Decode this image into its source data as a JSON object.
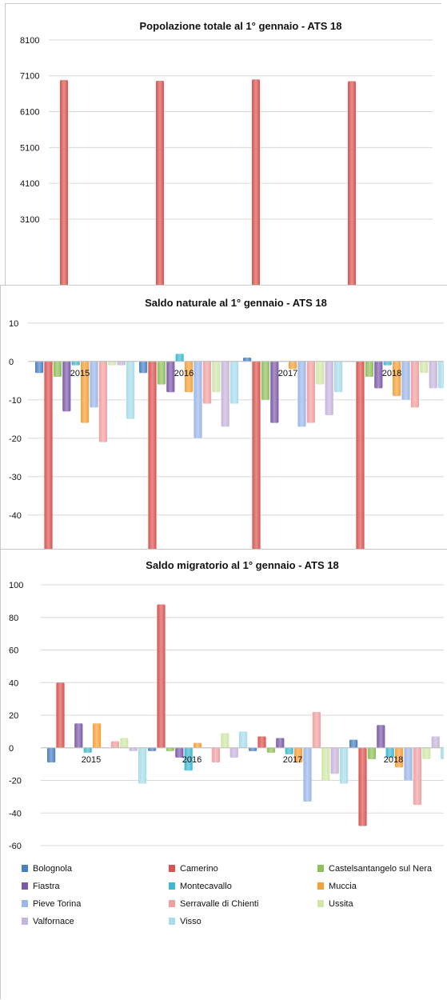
{
  "colors": {
    "Bolognola": "#4a7fc1",
    "Camerino": "#d9534f",
    "Castelsantangelo sul Nera": "#8fbf5a",
    "Fiastra": "#7b5aa6",
    "Montecavallo": "#3fb8d0",
    "Muccia": "#f5a03a",
    "Pieve Torina": "#9bb7e8",
    "Serravalle di Chienti": "#f0a0a0",
    "Ussita": "#cfe6a8",
    "Valfornace": "#c7b4dc",
    "Visso": "#a7dcea"
  },
  "chart_data": [
    {
      "type": "bar",
      "title": "Popolazione totale al 1° gennaio - ATS 18",
      "categories": [
        "",
        "",
        "",
        ""
      ],
      "yticks": [
        3100,
        4100,
        5100,
        6100,
        7100,
        8100
      ],
      "ylim": [
        2250,
        8500
      ],
      "series": [
        {
          "key": "Camerino",
          "values": [
            6980,
            6960,
            7000,
            6950
          ]
        }
      ]
    },
    {
      "type": "bar",
      "title": "Saldo naturale al 1° gennaio - ATS 18",
      "categories": [
        "2015",
        "2016",
        "2017",
        "2018"
      ],
      "yticks": [
        -40,
        -30,
        -20,
        -10,
        0,
        10
      ],
      "ylim": [
        -49,
        11
      ],
      "series": [
        {
          "key": "Bolognola",
          "values": [
            -3,
            -3,
            1,
            0
          ]
        },
        {
          "key": "Camerino",
          "values": [
            -60,
            -60,
            -60,
            -60
          ]
        },
        {
          "key": "Castelsantangelo sul Nera",
          "values": [
            -4,
            -6,
            -10,
            -4
          ]
        },
        {
          "key": "Fiastra",
          "values": [
            -13,
            -8,
            -16,
            -7
          ]
        },
        {
          "key": "Montecavallo",
          "values": [
            -1,
            2,
            0,
            -1
          ]
        },
        {
          "key": "Muccia",
          "values": [
            -16,
            -8,
            -2,
            -9
          ]
        },
        {
          "key": "Pieve Torina",
          "values": [
            -12,
            -20,
            -17,
            -10
          ]
        },
        {
          "key": "Serravalle di Chienti",
          "values": [
            -21,
            -11,
            -16,
            -12
          ]
        },
        {
          "key": "Ussita",
          "values": [
            -1,
            -8,
            -6,
            -3
          ]
        },
        {
          "key": "Valfornace",
          "values": [
            -1,
            -17,
            -14,
            -7
          ]
        },
        {
          "key": "Visso",
          "values": [
            -15,
            -11,
            -8,
            -7
          ]
        }
      ]
    },
    {
      "type": "bar",
      "title": "Saldo migratorio al 1° gennaio - ATS 18",
      "categories": [
        "2015",
        "2016",
        "2017",
        "2018"
      ],
      "yticks": [
        -60,
        -40,
        -20,
        0,
        20,
        40,
        60,
        80,
        100
      ],
      "ylim": [
        -60,
        100
      ],
      "series": [
        {
          "key": "Bolognola",
          "values": [
            -9,
            -2,
            -2,
            5
          ]
        },
        {
          "key": "Camerino",
          "values": [
            40,
            88,
            7,
            -48
          ]
        },
        {
          "key": "Castelsantangelo sul Nera",
          "values": [
            0,
            -2,
            -3,
            -7
          ]
        },
        {
          "key": "Fiastra",
          "values": [
            15,
            -6,
            6,
            14
          ]
        },
        {
          "key": "Montecavallo",
          "values": [
            -3,
            -14,
            -4,
            -6
          ]
        },
        {
          "key": "Muccia",
          "values": [
            15,
            3,
            -9,
            -12
          ]
        },
        {
          "key": "Pieve Torina",
          "values": [
            0,
            0,
            -33,
            -20
          ]
        },
        {
          "key": "Serravalle di Chienti",
          "values": [
            4,
            -9,
            22,
            -35
          ]
        },
        {
          "key": "Ussita",
          "values": [
            6,
            9,
            -20,
            -7
          ]
        },
        {
          "key": "Valfornace",
          "values": [
            -2,
            -6,
            -16,
            7
          ]
        },
        {
          "key": "Visso",
          "values": [
            -22,
            10,
            -22,
            -7
          ]
        }
      ],
      "legend": [
        "Bolognola",
        "Camerino",
        "Castelsantangelo sul Nera",
        "Fiastra",
        "Montecavallo",
        "Muccia",
        "Pieve Torina",
        "Serravalle di Chienti",
        "Ussita",
        "Valfornace",
        "Visso"
      ]
    }
  ]
}
